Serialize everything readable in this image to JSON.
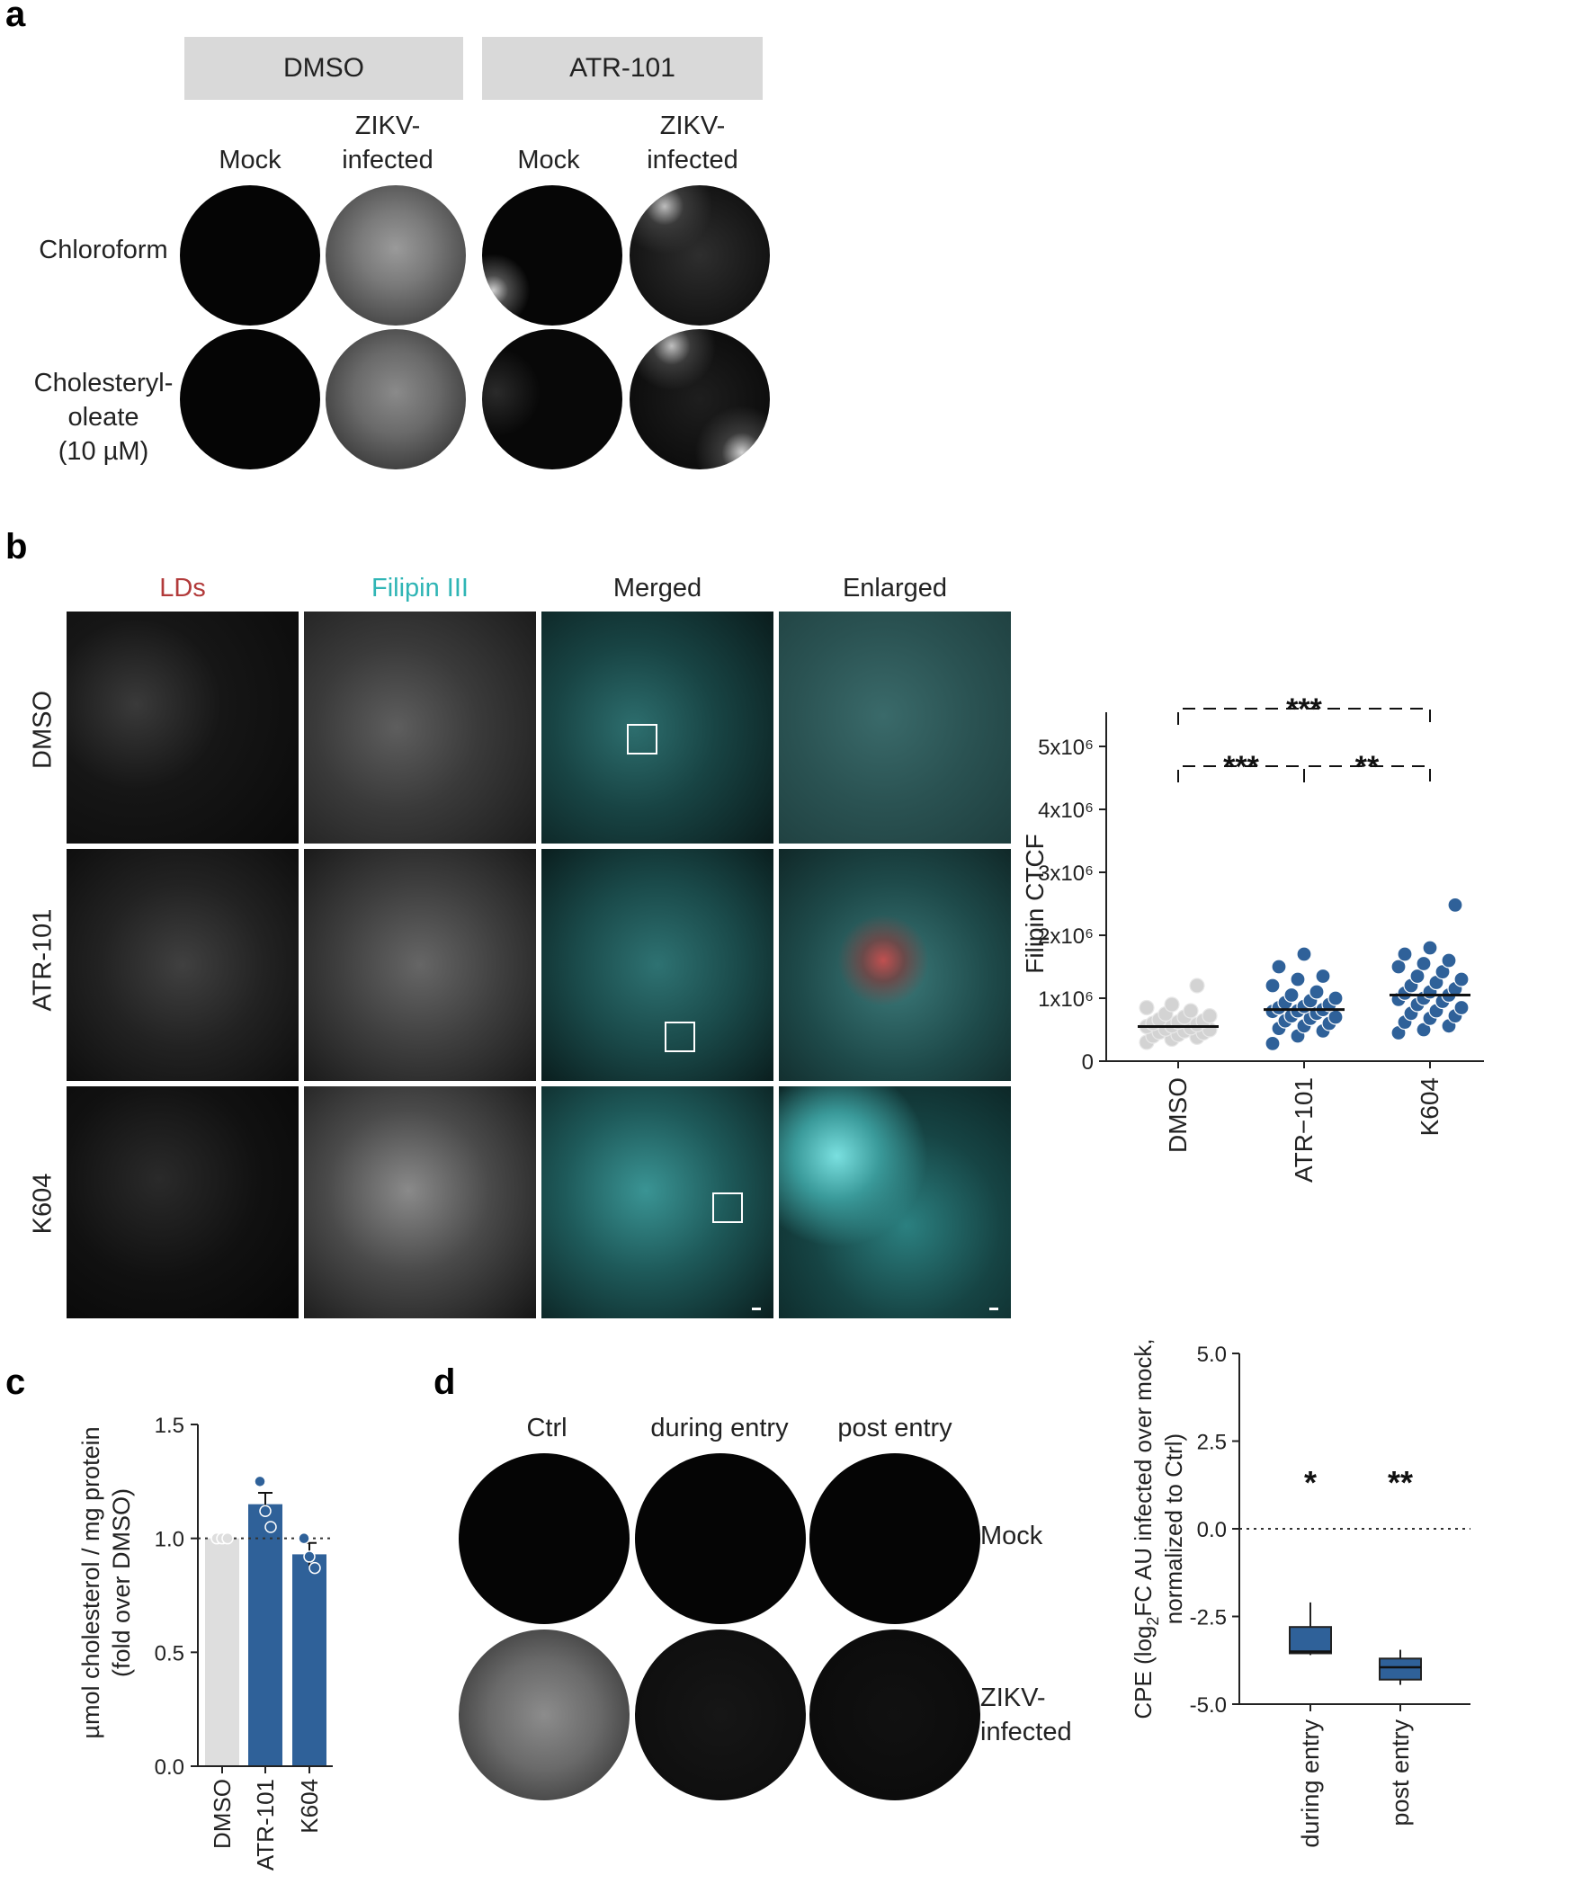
{
  "panel_a": {
    "label": "a",
    "groups": [
      "DMSO",
      "ATR-101"
    ],
    "col_mock": "Mock",
    "col_zikv_line1": "ZIKV-",
    "col_zikv_line2": "infected",
    "row1": "Chloroform",
    "row2_line1": "Cholesteryl-",
    "row2_line2": "oleate",
    "row2_line3": "(10 µM)"
  },
  "panel_b": {
    "label": "b",
    "columns": [
      "LDs",
      "Filipin III",
      "Merged",
      "Enlarged"
    ],
    "rows": [
      "DMSO",
      "ATR-101",
      "K604"
    ],
    "colors": {
      "lds": "#b23a3a",
      "filipin": "#2fb5b5",
      "cyan": "#31d6d6"
    }
  },
  "panel_c": {
    "label": "c"
  },
  "panel_d": {
    "label": "d",
    "columns": [
      "Ctrl",
      "during entry",
      "post entry"
    ],
    "row1": "Mock",
    "row2_line1": "ZIKV-",
    "row2_line2": "infected"
  },
  "chart_data": [
    {
      "id": "filipin_ctcf",
      "type": "scatter",
      "ylabel": "Filipin CTCF",
      "categories": [
        "DMSO",
        "ATR−101",
        "K604"
      ],
      "yticks": [
        "0",
        "1x10⁶",
        "2x10⁶",
        "3x10⁶",
        "4x10⁶",
        "5x10⁶"
      ],
      "ylim": [
        0,
        5000000
      ],
      "means": [
        550000,
        820000,
        1050000
      ],
      "series": [
        {
          "values": [
            300000,
            350000,
            380000,
            400000,
            420000,
            450000,
            460000,
            480000,
            500000,
            510000,
            530000,
            550000,
            560000,
            580000,
            600000,
            620000,
            640000,
            660000,
            700000,
            720000,
            750000,
            800000,
            850000,
            900000,
            1200000
          ]
        },
        {
          "values": [
            280000,
            400000,
            480000,
            520000,
            560000,
            600000,
            640000,
            680000,
            700000,
            720000,
            760000,
            790000,
            800000,
            820000,
            850000,
            870000,
            900000,
            930000,
            960000,
            1000000,
            1050000,
            1100000,
            1200000,
            1300000,
            1350000,
            1500000,
            1700000
          ]
        },
        {
          "values": [
            450000,
            500000,
            560000,
            620000,
            680000,
            720000,
            760000,
            800000,
            850000,
            900000,
            950000,
            980000,
            1000000,
            1050000,
            1080000,
            1100000,
            1150000,
            1200000,
            1250000,
            1300000,
            1350000,
            1420000,
            1500000,
            1550000,
            1600000,
            1700000,
            1800000,
            2480000
          ]
        }
      ],
      "colors": [
        "#d3d3d3",
        "#2f6199",
        "#2f6199"
      ],
      "significance": [
        {
          "from": "DMSO",
          "to": "K604",
          "text": "***"
        },
        {
          "from": "DMSO",
          "to": "ATR−101",
          "text": "***"
        },
        {
          "from": "ATR−101",
          "to": "K604",
          "text": "**"
        }
      ]
    },
    {
      "id": "cholesterol",
      "type": "bar",
      "ylabel_line1": "µmol cholesterol / mg protein",
      "ylabel_line2": "(fold over DMSO)",
      "categories": [
        "DMSO",
        "ATR-101",
        "K604"
      ],
      "values": [
        1.0,
        1.15,
        0.93
      ],
      "errors": [
        0,
        0.05,
        0.05
      ],
      "points": [
        [
          1.0,
          1.0,
          1.0
        ],
        [
          1.25,
          1.12,
          1.05
        ],
        [
          1.0,
          0.92,
          0.87
        ]
      ],
      "colors": [
        "#dedede",
        "#2f6199",
        "#2f6199"
      ],
      "yticks": [
        "0.0",
        "0.5",
        "1.0",
        "1.5"
      ],
      "ylim": [
        0,
        1.5
      ],
      "reference_line": 1.0
    },
    {
      "id": "cpe",
      "type": "box",
      "ylabel_line1": "CPE (log",
      "ylabel_sub": "2",
      "ylabel_line1b": "FC AU infected over mock,",
      "ylabel_line2": "normalized to Ctrl)",
      "categories": [
        "during entry",
        "post entry"
      ],
      "boxes": [
        {
          "min": -3.6,
          "q1": -3.55,
          "median": -3.5,
          "q3": -2.8,
          "max": -2.1
        },
        {
          "min": -4.45,
          "q1": -4.3,
          "median": -3.95,
          "q3": -3.7,
          "max": -3.45
        }
      ],
      "color": "#2f6199",
      "yticks": [
        "5.0",
        "2.5",
        "0.0",
        "-2.5",
        "-5.0"
      ],
      "ylim": [
        -5,
        5
      ],
      "reference_line": 0,
      "significance": [
        "*",
        "**"
      ]
    }
  ]
}
